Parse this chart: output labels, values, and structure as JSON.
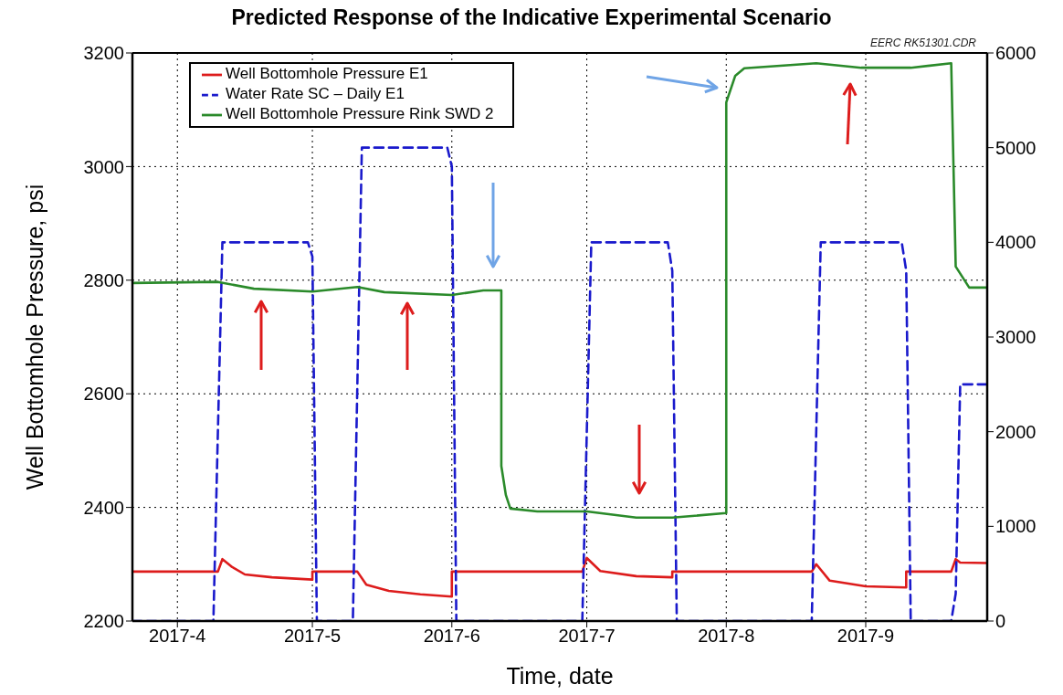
{
  "chart_data": {
    "type": "line",
    "title": "Predicted Response of the Indicative Experimental Scenario",
    "xlabel": "Time, date",
    "ylabel": "Well Bottomhole Pressure, psi",
    "annotations": [
      "EERC RK51301.CDR"
    ],
    "xlim": [
      "2017-03-22",
      "2017-09-28"
    ],
    "xticks": [
      {
        "value": "2017-04",
        "label": "2017-4"
      },
      {
        "value": "2017-05",
        "label": "2017-5"
      },
      {
        "value": "2017-06",
        "label": "2017-6"
      },
      {
        "value": "2017-07",
        "label": "2017-7"
      },
      {
        "value": "2017-08",
        "label": "2017-8"
      },
      {
        "value": "2017-09",
        "label": "2017-9"
      }
    ],
    "ylim": [
      2200,
      3200
    ],
    "yticks": [
      2200,
      2400,
      2600,
      2800,
      3000,
      3200
    ],
    "y2lim": [
      0,
      6000
    ],
    "y2ticks": [
      0,
      1000,
      2000,
      3000,
      4000,
      5000,
      6000
    ],
    "grid": true,
    "legend": "top left",
    "series": [
      {
        "name": "Well Bottomhole Pressure E1",
        "color": "#dd1c1c",
        "line_style": "solid",
        "x": [
          "2017-03-22",
          "2017-04-10",
          "2017-04-11",
          "2017-04-13",
          "2017-04-16",
          "2017-04-22",
          "2017-05-01",
          "2017-05-01",
          "2017-05-11",
          "2017-05-13",
          "2017-05-18",
          "2017-05-25",
          "2017-06-01",
          "2017-06-01",
          "2017-06-30",
          "2017-07-01",
          "2017-07-04",
          "2017-07-12",
          "2017-07-20",
          "2017-07-20",
          "2017-08-20",
          "2017-08-21",
          "2017-08-24",
          "2017-09-01",
          "2017-09-10",
          "2017-09-10",
          "2017-09-20",
          "2017-09-21",
          "2017-09-22",
          "2017-09-28"
        ],
        "values": [
          2287,
          2287,
          2309,
          2296,
          2282,
          2277,
          2273,
          2287,
          2287,
          2264,
          2253,
          2247,
          2243,
          2287,
          2287,
          2311,
          2288,
          2279,
          2277,
          2287,
          2287,
          2300,
          2271,
          2261,
          2259,
          2287,
          2287,
          2309,
          2303,
          2302
        ]
      },
      {
        "name": "Water Rate SC – Daily E1",
        "color": "#1a1acc",
        "line_style": "dashed",
        "axis": "y2",
        "x": [
          "2017-03-22",
          "2017-04-09",
          "2017-04-11",
          "2017-04-30",
          "2017-05-01",
          "2017-05-02",
          "2017-05-10",
          "2017-05-12",
          "2017-05-31",
          "2017-06-01",
          "2017-06-02",
          "2017-06-30",
          "2017-07-02",
          "2017-07-19",
          "2017-07-20",
          "2017-07-21",
          "2017-08-20",
          "2017-08-22",
          "2017-09-09",
          "2017-09-10",
          "2017-09-11",
          "2017-09-20",
          "2017-09-21",
          "2017-09-22",
          "2017-09-28"
        ],
        "values": [
          0,
          0,
          4000,
          4000,
          3850,
          0,
          0,
          5000,
          5000,
          4800,
          0,
          0,
          4000,
          4000,
          3700,
          0,
          0,
          4000,
          4000,
          3700,
          0,
          0,
          290,
          2500,
          2500
        ]
      },
      {
        "name": "Well Bottomhole Pressure Rink SWD 2",
        "color": "#2a8a2a",
        "line_style": "solid",
        "x": [
          "2017-03-22",
          "2017-04-10",
          "2017-04-18",
          "2017-05-01",
          "2017-05-11",
          "2017-05-17",
          "2017-06-01",
          "2017-06-08",
          "2017-06-12",
          "2017-06-12",
          "2017-06-13",
          "2017-06-14",
          "2017-06-20",
          "2017-07-01",
          "2017-07-12",
          "2017-07-20",
          "2017-08-01",
          "2017-08-01",
          "2017-08-03",
          "2017-08-05",
          "2017-08-21",
          "2017-08-31",
          "2017-09-11",
          "2017-09-20",
          "2017-09-21",
          "2017-09-24",
          "2017-09-28"
        ],
        "values": [
          2795,
          2797,
          2785,
          2780,
          2788,
          2779,
          2774,
          2782,
          2782,
          2473,
          2422,
          2398,
          2393,
          2393,
          2382,
          2382,
          2390,
          3113,
          3160,
          3173,
          3182,
          3174,
          3174,
          3182,
          2824,
          2787,
          2787
        ]
      }
    ]
  }
}
